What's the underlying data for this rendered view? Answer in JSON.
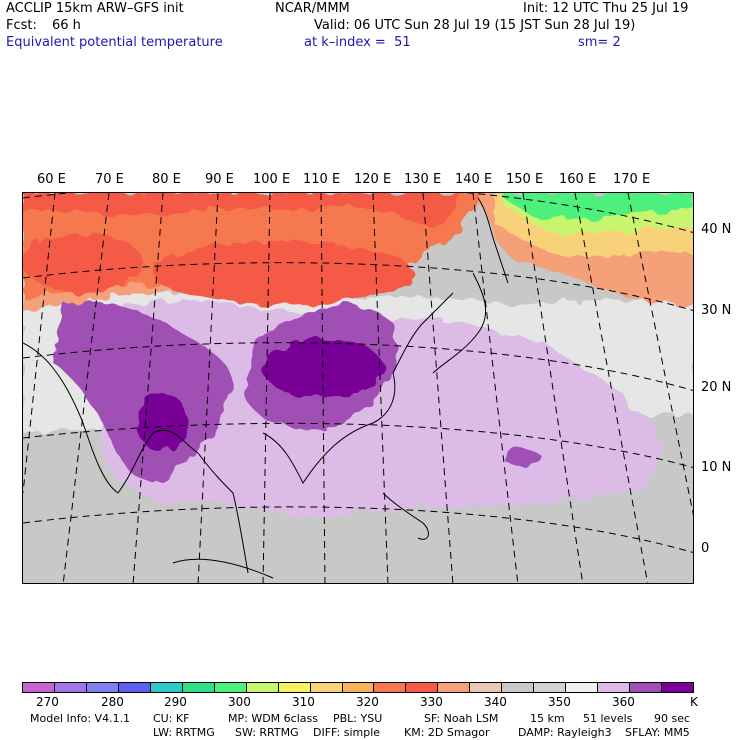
{
  "header": {
    "model": "ACCLIP 15km ARW–GFS init",
    "org": "NCAR/MMM",
    "init": "Init: 12 UTC Thu 25 Jul 19",
    "fcst_label": "Fcst:",
    "fcst_value": "66 h",
    "valid": "Valid: 06 UTC Sun 28 Jul 19 (15 JST Sun 28 Jul 19)",
    "field": "Equivalent potential temperature",
    "level": "at k–index =  51",
    "smooth": "sm= 2"
  },
  "map": {
    "lon_labels": [
      "60 E",
      "70 E",
      "80 E",
      "90 E",
      "100 E",
      "110 E",
      "120 E",
      "130 E",
      "140 E",
      "150 E",
      "160 E",
      "170 E"
    ],
    "lat_labels": [
      "40 N",
      "30 N",
      "20 N",
      "10 N",
      "0"
    ]
  },
  "colorbar": {
    "colors": [
      "#c864d2",
      "#a078e6",
      "#7f7fee",
      "#6060f0",
      "#2ec8c8",
      "#2ee08c",
      "#4ef07c",
      "#c8f56e",
      "#f5f064",
      "#f8d278",
      "#f5b45a",
      "#f57850",
      "#f55a46",
      "#f5a078",
      "#eac8b4",
      "#c8c8c8",
      "#d2d2d2",
      "#f0f0f0",
      "#dcbce6",
      "#a050b4",
      "#780096"
    ],
    "labels": [
      "270",
      "280",
      "290",
      "300",
      "310",
      "320",
      "330",
      "340",
      "350",
      "360"
    ],
    "unit": "K"
  },
  "model_info": {
    "version": "Model Info: V4.1.1",
    "cu": "CU: KF",
    "mp": "MP: WDM 6class",
    "pbl": "PBL: YSU",
    "sf": "SF: Noah LSM",
    "res": "15 km",
    "levels": "51 levels",
    "dt": "90 sec",
    "lw": "LW: RRTMG",
    "sw": "SW: RRTMG",
    "diff": "DIFF: simple",
    "km": "KM: 2D Smagor",
    "damp": "DAMP: Rayleigh3",
    "sflay": "SFLAY: MM5"
  }
}
